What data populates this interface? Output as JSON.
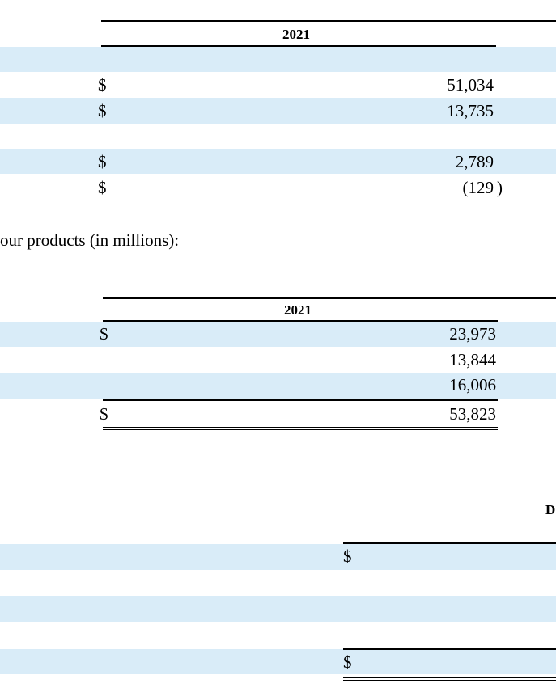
{
  "table1": {
    "year": "2021",
    "rows": [
      {
        "currency": "$",
        "value": "51,034"
      },
      {
        "currency": "$",
        "value": "13,735"
      },
      {
        "currency": "$",
        "value": "2,789"
      },
      {
        "currency": "$",
        "value": "(129"
      },
      {
        "close_paren": ")"
      }
    ]
  },
  "intro_text": "our products (in millions):",
  "table2": {
    "year": "2021",
    "rows": [
      {
        "currency": "$",
        "value": "23,973"
      },
      {
        "currency": "",
        "value": "13,844"
      },
      {
        "currency": "",
        "value": "16,006"
      },
      {
        "currency": "$",
        "value": "53,823"
      }
    ]
  },
  "table3": {
    "header_fragment": "D",
    "rows": [
      {
        "currency": "$"
      },
      {
        "currency": "$"
      }
    ]
  },
  "colors": {
    "row_band": "#d9ecf8",
    "rule": "#000000"
  }
}
